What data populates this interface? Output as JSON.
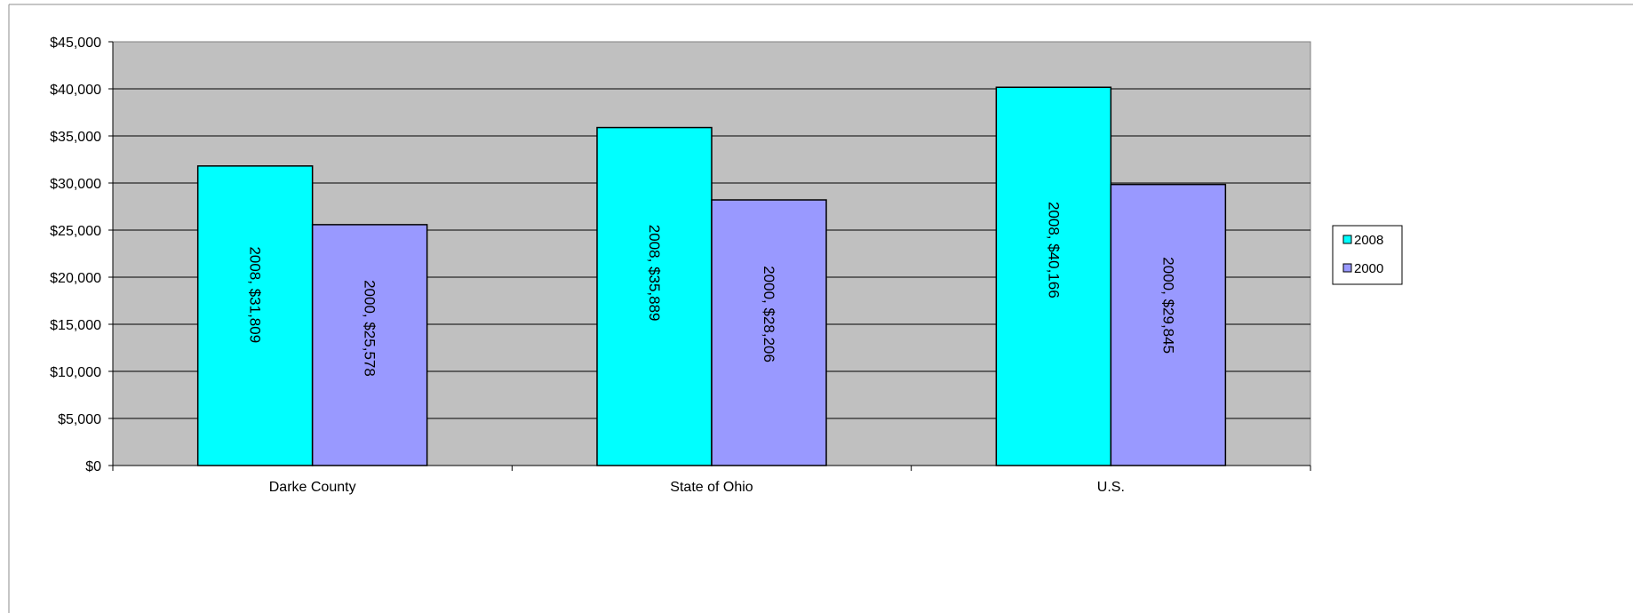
{
  "chart_data": {
    "type": "bar",
    "categories": [
      "Darke County",
      "State of Ohio",
      "U.S."
    ],
    "series": [
      {
        "name": "2008",
        "values": [
          31809,
          35889,
          40166
        ],
        "color": "#00ffff",
        "labels": [
          "2008, $31,809",
          "2008, $35,889",
          "2008, $40,166"
        ]
      },
      {
        "name": "2000",
        "values": [
          25578,
          28206,
          29845
        ],
        "color": "#9999ff",
        "labels": [
          "2000, $25,578",
          "2000, $28,206",
          "2000, $29,845"
        ]
      }
    ],
    "ylim": [
      0,
      45000
    ],
    "y_ticks": [
      0,
      5000,
      10000,
      15000,
      20000,
      25000,
      30000,
      35000,
      40000,
      45000
    ],
    "y_tick_labels": [
      "$0",
      "$5,000",
      "$10,000",
      "$15,000",
      "$20,000",
      "$25,000",
      "$30,000",
      "$35,000",
      "$40,000",
      "$45,000"
    ],
    "title": "",
    "xlabel": "",
    "ylabel": "",
    "grid": true,
    "legend_position": "right",
    "plot_background": "#c0c0c0"
  }
}
